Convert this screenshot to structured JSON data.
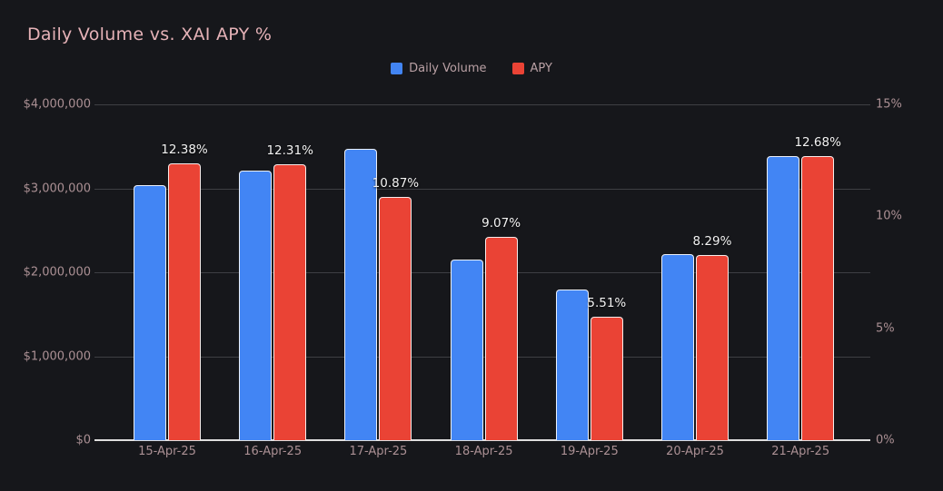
{
  "title": "Daily Volume vs. XAI APY %",
  "colors": {
    "background": "#16171b",
    "title": "#e5b2b7",
    "axis_label": "#ab9094",
    "legend_label": "#b9a0a4",
    "gridline": "#3e3f44",
    "baseline": "#dedede",
    "volume_bar": "#4285f4",
    "apy_bar": "#ea4335",
    "data_label": "#f2f2f2"
  },
  "legend": {
    "items": [
      {
        "label": "Daily Volume",
        "color": "#4285f4"
      },
      {
        "label": "APY",
        "color": "#ea4335"
      }
    ]
  },
  "chart_data": {
    "type": "bar",
    "title": "Daily Volume vs. XAI APY %",
    "categories": [
      "15-Apr-25",
      "16-Apr-25",
      "17-Apr-25",
      "18-Apr-25",
      "19-Apr-25",
      "20-Apr-25",
      "21-Apr-25"
    ],
    "series": [
      {
        "name": "Daily Volume",
        "axis": "left",
        "color": "#4285f4",
        "values": [
          3040000,
          3210000,
          3470000,
          2150000,
          1790000,
          2220000,
          3380000
        ]
      },
      {
        "name": "APY",
        "axis": "right",
        "color": "#ea4335",
        "values": [
          12.38,
          12.31,
          10.87,
          9.07,
          5.51,
          8.29,
          12.68
        ],
        "data_labels": [
          "12.38%",
          "12.31%",
          "10.87%",
          "9.07%",
          "5.51%",
          "8.29%",
          "12.68%"
        ]
      }
    ],
    "left_axis": {
      "min": 0,
      "max": 4000000,
      "tick_values": [
        0,
        1000000,
        2000000,
        3000000,
        4000000
      ],
      "tick_labels": [
        "$0",
        "$1,000,000",
        "$2,000,000",
        "$3,000,000",
        "$4,000,000"
      ]
    },
    "right_axis": {
      "min": 0,
      "max": 15,
      "tick_values": [
        0,
        5,
        10,
        15
      ],
      "tick_labels": [
        "0%",
        "5%",
        "10%",
        "15%"
      ]
    },
    "grid": true,
    "legend_position": "top"
  }
}
